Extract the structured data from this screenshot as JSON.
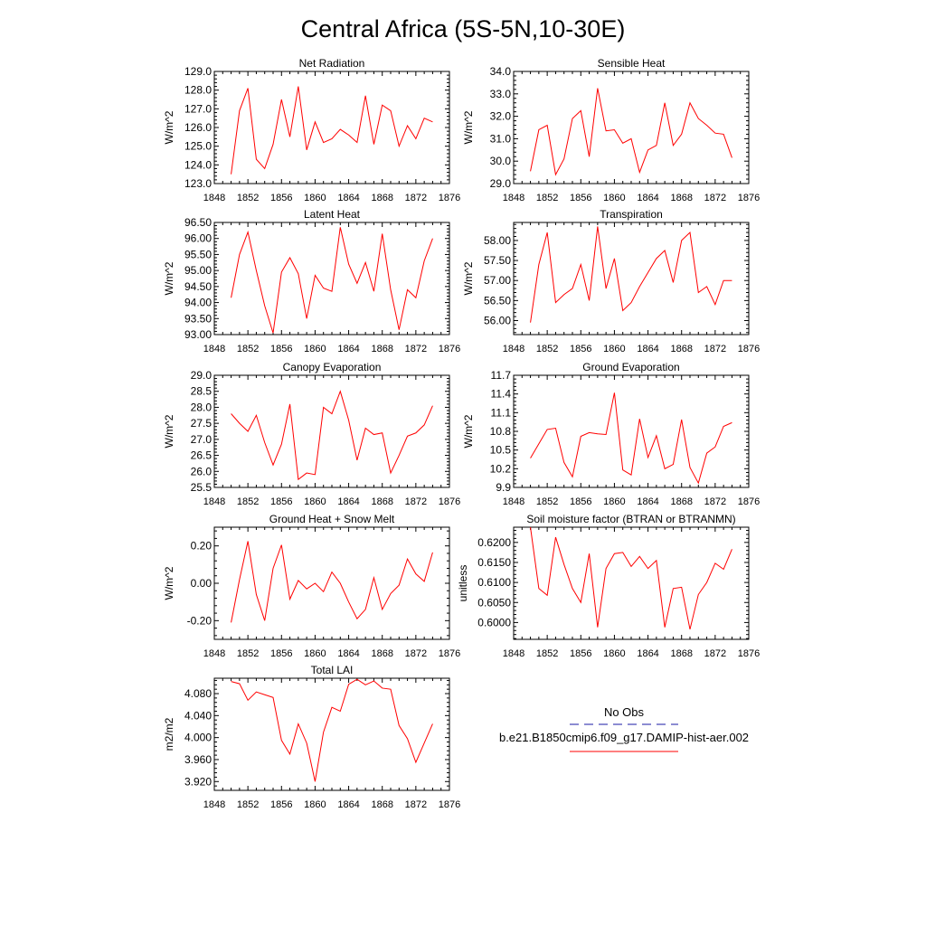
{
  "title": "Central Africa (5S-5N,10-30E)",
  "colors": {
    "model_line": "#ff0000",
    "obs_line": "#1a1aa6",
    "axes": "#000000"
  },
  "legend": {
    "obs_label": "No Obs",
    "model_label": "b.e21.B1850cmip6.f09_g17.DAMIP-hist-aer.002",
    "placement": "lower-right"
  },
  "chart_data": [
    {
      "type": "line",
      "title": "Net Radiation",
      "ylabel": "W/m^2",
      "xlim": [
        1848,
        1876
      ],
      "xticks": [
        1848,
        1852,
        1856,
        1860,
        1864,
        1868,
        1872,
        1876
      ],
      "ylim": [
        123,
        129
      ],
      "yticks": [
        123,
        124,
        125,
        126,
        127,
        128,
        129
      ],
      "ydecimals": 1,
      "x": [
        1850,
        1851,
        1852,
        1853,
        1854,
        1855,
        1856,
        1857,
        1858,
        1859,
        1860,
        1861,
        1862,
        1863,
        1864,
        1865,
        1866,
        1867,
        1868,
        1869,
        1870,
        1871,
        1872,
        1873,
        1874
      ],
      "y": [
        123.5,
        126.9,
        128.1,
        124.3,
        123.8,
        125.1,
        127.5,
        125.5,
        128.2,
        124.8,
        126.3,
        125.2,
        125.4,
        125.9,
        125.6,
        125.2,
        127.7,
        125.1,
        127.2,
        126.9,
        125.0,
        126.1,
        125.4,
        126.5,
        126.3
      ]
    },
    {
      "type": "line",
      "title": "Sensible Heat",
      "ylabel": "W/m^2",
      "xlim": [
        1848,
        1876
      ],
      "xticks": [
        1848,
        1852,
        1856,
        1860,
        1864,
        1868,
        1872,
        1876
      ],
      "ylim": [
        29,
        34
      ],
      "yticks": [
        29,
        30,
        31,
        32,
        33,
        34
      ],
      "ydecimals": 1,
      "x": [
        1850,
        1851,
        1852,
        1853,
        1854,
        1855,
        1856,
        1857,
        1858,
        1859,
        1860,
        1861,
        1862,
        1863,
        1864,
        1865,
        1866,
        1867,
        1868,
        1869,
        1870,
        1871,
        1872,
        1873,
        1874
      ],
      "y": [
        29.55,
        31.4,
        31.6,
        29.4,
        30.1,
        31.9,
        32.25,
        30.2,
        33.25,
        31.35,
        31.4,
        30.8,
        31.0,
        29.5,
        30.5,
        30.7,
        32.6,
        30.7,
        31.2,
        32.6,
        31.9,
        31.6,
        31.25,
        31.2,
        30.15
      ]
    },
    {
      "type": "line",
      "title": "Latent Heat",
      "ylabel": "W/m^2",
      "xlim": [
        1848,
        1876
      ],
      "xticks": [
        1848,
        1852,
        1856,
        1860,
        1864,
        1868,
        1872,
        1876
      ],
      "ylim": [
        93,
        96.5
      ],
      "yticks": [
        93,
        93.5,
        94,
        94.5,
        95,
        95.5,
        96,
        96.5
      ],
      "ydecimals": 2,
      "x": [
        1850,
        1851,
        1852,
        1853,
        1854,
        1855,
        1856,
        1857,
        1858,
        1859,
        1860,
        1861,
        1862,
        1863,
        1864,
        1865,
        1866,
        1867,
        1868,
        1869,
        1870,
        1871,
        1872,
        1873,
        1874
      ],
      "y": [
        94.15,
        95.5,
        96.2,
        95.0,
        93.9,
        93.05,
        94.95,
        95.4,
        94.9,
        93.5,
        94.85,
        94.45,
        94.35,
        96.35,
        95.2,
        94.6,
        95.25,
        94.35,
        96.15,
        94.4,
        93.15,
        94.4,
        94.15,
        95.3,
        96.0
      ]
    },
    {
      "type": "line",
      "title": "Transpiration",
      "ylabel": "W/m^2",
      "xlim": [
        1848,
        1876
      ],
      "xticks": [
        1848,
        1852,
        1856,
        1860,
        1864,
        1868,
        1872,
        1876
      ],
      "ylim": [
        55.65,
        58.45
      ],
      "yticks": [
        56,
        56.5,
        57,
        57.5,
        58
      ],
      "ydecimals": 2,
      "x": [
        1850,
        1851,
        1852,
        1853,
        1854,
        1855,
        1856,
        1857,
        1858,
        1859,
        1860,
        1861,
        1862,
        1863,
        1864,
        1865,
        1866,
        1867,
        1868,
        1869,
        1870,
        1871,
        1872,
        1873,
        1874
      ],
      "y": [
        55.95,
        57.4,
        58.2,
        56.45,
        56.65,
        56.8,
        57.4,
        56.5,
        58.35,
        56.8,
        57.55,
        56.25,
        56.45,
        56.85,
        57.2,
        57.55,
        57.75,
        56.95,
        58.0,
        58.2,
        56.7,
        56.85,
        56.4,
        57.0,
        57.0
      ]
    },
    {
      "type": "line",
      "title": "Canopy Evaporation",
      "ylabel": "W/m^2",
      "xlim": [
        1848,
        1876
      ],
      "xticks": [
        1848,
        1852,
        1856,
        1860,
        1864,
        1868,
        1872,
        1876
      ],
      "ylim": [
        25.5,
        29
      ],
      "yticks": [
        25.5,
        26,
        26.5,
        27,
        27.5,
        28,
        28.5,
        29
      ],
      "ydecimals": 1,
      "x": [
        1850,
        1851,
        1852,
        1853,
        1854,
        1855,
        1856,
        1857,
        1858,
        1859,
        1860,
        1861,
        1862,
        1863,
        1864,
        1865,
        1866,
        1867,
        1868,
        1869,
        1870,
        1871,
        1872,
        1873,
        1874
      ],
      "y": [
        27.8,
        27.5,
        27.25,
        27.75,
        26.9,
        26.2,
        26.85,
        28.1,
        25.75,
        25.95,
        25.9,
        28.0,
        27.8,
        28.5,
        27.6,
        26.35,
        27.35,
        27.15,
        27.2,
        25.95,
        26.5,
        27.1,
        27.2,
        27.45,
        28.05
      ]
    },
    {
      "type": "line",
      "title": "Ground Evaporation",
      "ylabel": "W/m^2",
      "xlim": [
        1848,
        1876
      ],
      "xticks": [
        1848,
        1852,
        1856,
        1860,
        1864,
        1868,
        1872,
        1876
      ],
      "ylim": [
        9.9,
        11.7
      ],
      "yticks": [
        9.9,
        10.2,
        10.5,
        10.8,
        11.1,
        11.4,
        11.7
      ],
      "ydecimals": 1,
      "x": [
        1850,
        1851,
        1852,
        1853,
        1854,
        1855,
        1856,
        1857,
        1858,
        1859,
        1860,
        1861,
        1862,
        1863,
        1864,
        1865,
        1866,
        1867,
        1868,
        1869,
        1870,
        1871,
        1872,
        1873,
        1874
      ],
      "y": [
        10.37,
        10.6,
        10.83,
        10.85,
        10.3,
        10.07,
        10.72,
        10.78,
        10.76,
        10.75,
        11.42,
        10.18,
        10.1,
        11.0,
        10.38,
        10.73,
        10.2,
        10.27,
        10.99,
        10.22,
        9.97,
        10.45,
        10.55,
        10.88,
        10.94
      ]
    },
    {
      "type": "line",
      "title": "Ground Heat + Snow Melt",
      "ylabel": "W/m^2",
      "xlim": [
        1848,
        1876
      ],
      "xticks": [
        1848,
        1852,
        1856,
        1860,
        1864,
        1868,
        1872,
        1876
      ],
      "ylim": [
        -0.3,
        0.3
      ],
      "yticks": [
        -0.2,
        0,
        0.2
      ],
      "ydecimals": 2,
      "x": [
        1850,
        1851,
        1852,
        1853,
        1854,
        1855,
        1856,
        1857,
        1858,
        1859,
        1860,
        1861,
        1862,
        1863,
        1864,
        1865,
        1866,
        1867,
        1868,
        1869,
        1870,
        1871,
        1872,
        1873,
        1874
      ],
      "y": [
        -0.21,
        0.02,
        0.225,
        -0.06,
        -0.2,
        0.08,
        0.205,
        -0.085,
        0.015,
        -0.03,
        0.0,
        -0.045,
        0.06,
        0.0,
        -0.1,
        -0.19,
        -0.14,
        0.03,
        -0.14,
        -0.055,
        -0.01,
        0.13,
        0.05,
        0.01,
        0.165
      ]
    },
    {
      "type": "line",
      "title": "Soil moisture factor (BTRAN or BTRANMN)",
      "ylabel": "unitless",
      "xlim": [
        1848,
        1876
      ],
      "xticks": [
        1848,
        1852,
        1856,
        1860,
        1864,
        1868,
        1872,
        1876
      ],
      "ylim": [
        0.5958,
        0.6238
      ],
      "yticks": [
        0.6,
        0.605,
        0.61,
        0.615,
        0.62
      ],
      "ydecimals": 4,
      "x": [
        1850,
        1851,
        1852,
        1853,
        1854,
        1855,
        1856,
        1857,
        1858,
        1859,
        1860,
        1861,
        1862,
        1863,
        1864,
        1865,
        1866,
        1867,
        1868,
        1869,
        1870,
        1871,
        1872,
        1873,
        1874
      ],
      "y": [
        0.6238,
        0.6085,
        0.6068,
        0.6213,
        0.6145,
        0.6085,
        0.605,
        0.6172,
        0.5988,
        0.6135,
        0.6172,
        0.6175,
        0.614,
        0.6165,
        0.6135,
        0.6155,
        0.5988,
        0.6085,
        0.6088,
        0.5983,
        0.607,
        0.61,
        0.6148,
        0.6133,
        0.6183
      ]
    },
    {
      "type": "line",
      "title": "Total LAI",
      "ylabel": "m2/m2",
      "xlim": [
        1848,
        1876
      ],
      "xticks": [
        1848,
        1852,
        1856,
        1860,
        1864,
        1868,
        1872,
        1876
      ],
      "ylim": [
        3.904,
        4.108
      ],
      "yticks": [
        3.92,
        3.96,
        4,
        4.04,
        4.08
      ],
      "ydecimals": 3,
      "x": [
        1850,
        1851,
        1852,
        1853,
        1854,
        1855,
        1856,
        1857,
        1858,
        1859,
        1860,
        1861,
        1862,
        1863,
        1864,
        1865,
        1866,
        1867,
        1868,
        1869,
        1870,
        1871,
        1872,
        1873,
        1874
      ],
      "y": [
        4.102,
        4.098,
        4.068,
        4.083,
        4.078,
        4.073,
        3.995,
        3.97,
        4.025,
        3.99,
        3.92,
        4.01,
        4.055,
        4.048,
        4.097,
        4.106,
        4.096,
        4.103,
        4.09,
        4.088,
        4.022,
        3.998,
        3.955,
        3.99,
        4.025
      ]
    }
  ]
}
